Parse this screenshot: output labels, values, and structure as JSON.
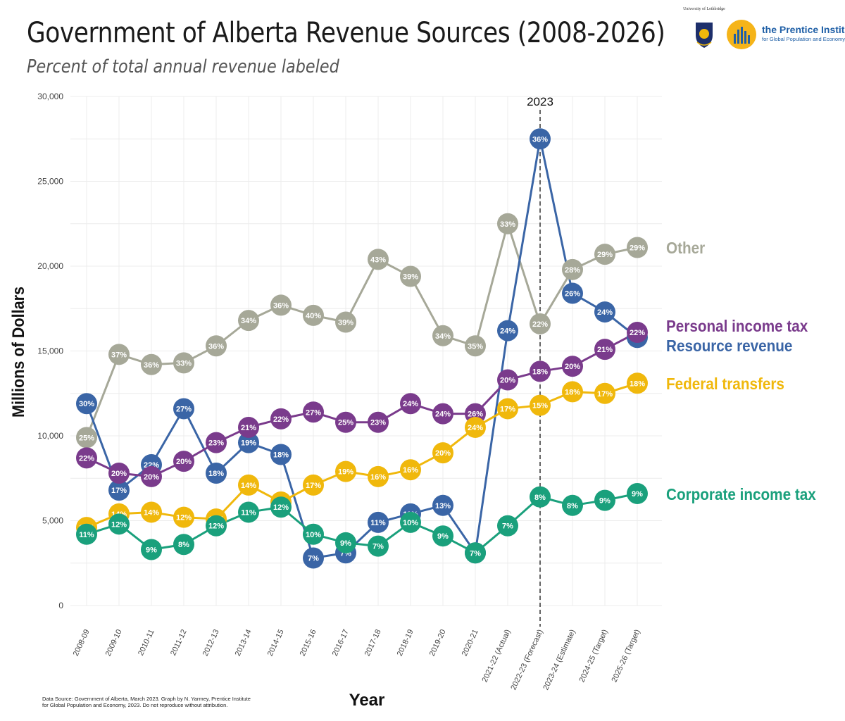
{
  "header": {
    "title": "Government of Alberta Revenue Sources (2008-2026)",
    "subtitle": "Percent of total annual revenue labeled"
  },
  "logos": {
    "uleth": "University of Lethbridge",
    "prentice_name": "the Prentice Institute",
    "prentice_sub": "for Global Population and Economy"
  },
  "source_note": "Data Source: Government of Alberta, March 2023. Graph by N. Yarmey, Prentice Institute for Global Population and Economy, 2023. Do not reproduce without attribution.",
  "chart_data": {
    "type": "line",
    "title": "Government of Alberta Revenue Sources (2008-2026)",
    "subtitle": "Percent of total annual revenue labeled",
    "xlabel": "Year",
    "ylabel": "Millions of Dollars",
    "ylim": [
      0,
      30000
    ],
    "yticks": [
      0,
      5000,
      10000,
      15000,
      20000,
      25000,
      30000
    ],
    "ytick_labels": [
      "0",
      "5,000",
      "10,000",
      "15,000",
      "20,000",
      "25,000",
      "30,000"
    ],
    "grid": true,
    "legend": "direct labels at right end of lines",
    "categories": [
      "2008-09",
      "2009-10",
      "2010-11",
      "2011-12",
      "2012-13",
      "2013-14",
      "2014-15",
      "2015-16",
      "2016-17",
      "2017-18",
      "2018-19",
      "2019-20",
      "2020-21",
      "2021-22 (Actual)",
      "2022-23 (Forecast)",
      "2023-24 (Estimate)",
      "2024-25 (Target)",
      "2025-26 (Target)"
    ],
    "reference_line": {
      "category": "2022-23 (Forecast)",
      "label": "2023",
      "style": "dashed"
    },
    "series": [
      {
        "name": "Other",
        "color": "#a6a898",
        "values": [
          9900,
          14800,
          14200,
          14300,
          15300,
          16800,
          17700,
          17100,
          16700,
          20400,
          19400,
          15900,
          15300,
          22500,
          16600,
          19800,
          20700,
          21100
        ],
        "labels": [
          "25%",
          "37%",
          "36%",
          "33%",
          "36%",
          "34%",
          "36%",
          "40%",
          "39%",
          "43%",
          "39%",
          "34%",
          "35%",
          "33%",
          "22%",
          "28%",
          "29%",
          "29%"
        ]
      },
      {
        "name": "Resource revenue",
        "color": "#3a65a6",
        "values": [
          11900,
          6800,
          8300,
          11600,
          7800,
          9600,
          8900,
          2800,
          3100,
          4900,
          5400,
          5900,
          3100,
          16200,
          27500,
          18400,
          17300,
          15800
        ],
        "labels": [
          "30%",
          "17%",
          "22%",
          "27%",
          "18%",
          "19%",
          "18%",
          "7%",
          "7%",
          "11%",
          "11%",
          "13%",
          "7%",
          "24%",
          "36%",
          "26%",
          "24%",
          "22%"
        ]
      },
      {
        "name": "Personal income tax",
        "color": "#7a3b8c",
        "values": [
          8700,
          7800,
          7600,
          8500,
          9600,
          10500,
          11000,
          11400,
          10800,
          10800,
          11900,
          11300,
          11300,
          13300,
          13800,
          14100,
          15100,
          16100
        ],
        "labels": [
          "22%",
          "20%",
          "20%",
          "20%",
          "23%",
          "21%",
          "22%",
          "27%",
          "25%",
          "23%",
          "24%",
          "24%",
          "26%",
          "20%",
          "18%",
          "20%",
          "21%",
          "22%"
        ]
      },
      {
        "name": "Federal transfers",
        "color": "#f0b80c",
        "values": [
          4600,
          5400,
          5500,
          5200,
          5100,
          7100,
          6100,
          7100,
          7900,
          7600,
          8000,
          9000,
          10500,
          11600,
          11800,
          12600,
          12500,
          13100
        ],
        "labels": [
          "12%",
          "14%",
          "14%",
          "12%",
          "12%",
          "14%",
          "12%",
          "17%",
          "19%",
          "16%",
          "16%",
          "20%",
          "24%",
          "17%",
          "15%",
          "18%",
          "17%",
          "18%"
        ]
      },
      {
        "name": "Corporate income tax",
        "color": "#1aa07c",
        "values": [
          4200,
          4800,
          3300,
          3600,
          4700,
          5500,
          5800,
          4200,
          3700,
          3500,
          4900,
          4100,
          3100,
          4700,
          6400,
          5900,
          6200,
          6600
        ],
        "labels": [
          "11%",
          "12%",
          "9%",
          "8%",
          "12%",
          "11%",
          "12%",
          "10%",
          "9%",
          "7%",
          "10%",
          "9%",
          "7%",
          "7%",
          "8%",
          "8%",
          "9%",
          "9%"
        ]
      }
    ]
  }
}
